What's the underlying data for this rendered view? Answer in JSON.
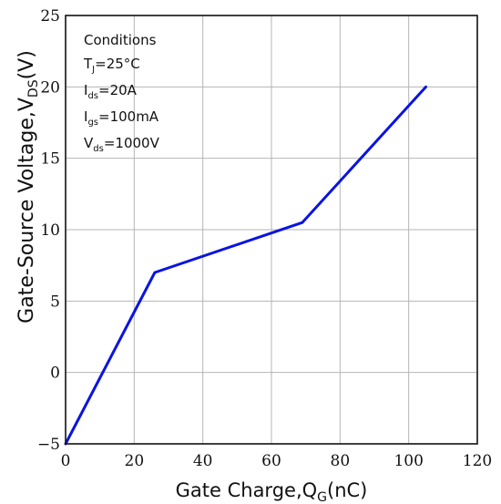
{
  "chart_data": {
    "type": "line",
    "xlabel": {
      "main": "Gate Charge,Q",
      "sub": "G",
      "unit": "(nC)"
    },
    "ylabel": {
      "main": "Gate-Source Voltage,V",
      "sub": "DS",
      "unit": "(V)"
    },
    "xlim": [
      0,
      120
    ],
    "ylim": [
      -5,
      25
    ],
    "xticks": [
      0,
      20,
      40,
      60,
      80,
      100,
      120
    ],
    "yticks": [
      -5,
      0,
      5,
      10,
      15,
      20,
      25
    ],
    "xtick_labels": [
      "0",
      "20",
      "40",
      "60",
      "80",
      "100",
      "120"
    ],
    "ytick_labels": [
      "−5",
      "0",
      "5",
      "10",
      "15",
      "20",
      "25"
    ],
    "grid": true,
    "series": [
      {
        "color": "#0a14e0",
        "x": [
          0,
          26,
          69,
          105
        ],
        "y": [
          -5,
          7,
          10.5,
          20
        ]
      }
    ],
    "annotations": {
      "heading": "Conditions",
      "lines": [
        {
          "main": "T",
          "sub": "J",
          "rest": "=25°C"
        },
        {
          "main": "I",
          "sub": "ds",
          "rest": "=20A"
        },
        {
          "main": "I",
          "sub": "gs",
          "rest": "=100mA"
        },
        {
          "main": "V",
          "sub": "ds",
          "rest": "=1000V"
        }
      ]
    }
  }
}
